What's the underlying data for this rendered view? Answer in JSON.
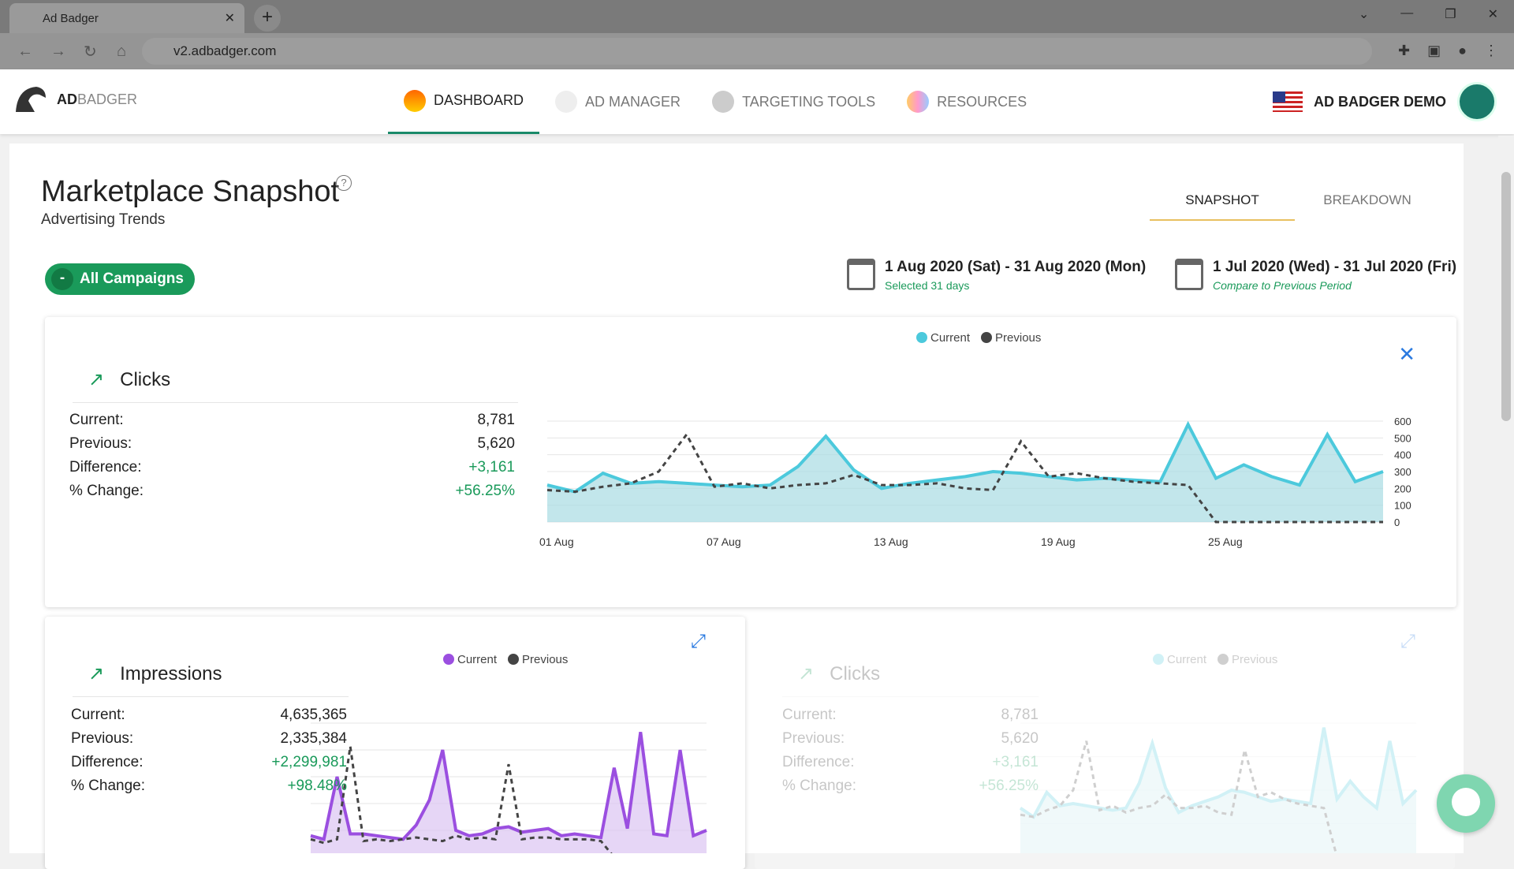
{
  "browser": {
    "tab_title": "Ad Badger",
    "url": "v2.adbadger.com"
  },
  "app": {
    "logo_bold": "AD",
    "logo_light": "BADGER",
    "menu": [
      {
        "label": "DASHBOARD",
        "active": true,
        "icon": "gauge-icon"
      },
      {
        "label": "AD MANAGER",
        "icon": "compass-icon"
      },
      {
        "label": "TARGETING TOOLS",
        "icon": "magnifier-icon"
      },
      {
        "label": "RESOURCES",
        "icon": "binders-icon"
      }
    ],
    "account": "AD BADGER DEMO"
  },
  "page": {
    "title": "Marketplace Snapshot",
    "help": "?",
    "subtitle": "Advertising Trends",
    "tabs": [
      "SNAPSHOT",
      "BREAKDOWN"
    ],
    "campaign_filter": "All Campaigns",
    "date_current": "1 Aug 2020 (Sat) - 31 Aug 2020 (Mon)",
    "date_current_note": "Selected 31 days",
    "date_previous": "1 Jul 2020 (Wed) - 31 Jul 2020 (Fri)",
    "date_previous_note": "Compare to Previous Period"
  },
  "colors": {
    "clicks": "#4cc9dc",
    "impressions": "#9b4fe0",
    "previous": "#444444",
    "positive": "#1a9a5a"
  },
  "cards": [
    {
      "title": "Clicks",
      "stats": [
        [
          "Current:",
          "8,781"
        ],
        [
          "Previous:",
          "5,620"
        ],
        [
          "Difference:",
          "+3,161"
        ],
        [
          "% Change:",
          "+56.25%"
        ]
      ],
      "legend": [
        "Current",
        "Previous"
      ]
    },
    {
      "title": "Impressions",
      "stats": [
        [
          "Current:",
          "4,635,365"
        ],
        [
          "Previous:",
          "2,335,384"
        ],
        [
          "Difference:",
          "+2,299,981"
        ],
        [
          "% Change:",
          "+98.48%"
        ]
      ],
      "legend": [
        "Current",
        "Previous"
      ]
    },
    {
      "title": "Clicks",
      "stats": [
        [
          "Current:",
          "8,781"
        ],
        [
          "Previous:",
          "5,620"
        ],
        [
          "Difference:",
          "+3,161"
        ],
        [
          "% Change:",
          "+56.25%"
        ]
      ],
      "legend": [
        "Current",
        "Previous"
      ]
    }
  ],
  "chart_data": [
    {
      "type": "area",
      "series": [
        {
          "name": "Current",
          "values": [
            220,
            180,
            290,
            230,
            240,
            230,
            220,
            210,
            220,
            330,
            510,
            310,
            200,
            230,
            250,
            270,
            300,
            290,
            270,
            250,
            260,
            250,
            240,
            580,
            260,
            340,
            270,
            220,
            520,
            240,
            300
          ]
        },
        {
          "name": "Previous",
          "values": [
            190,
            180,
            210,
            230,
            300,
            520,
            210,
            230,
            200,
            220,
            230,
            280,
            220,
            220,
            230,
            200,
            190,
            480,
            270,
            290,
            260,
            240,
            230,
            220,
            0,
            0,
            0,
            0,
            0,
            0,
            0
          ]
        }
      ],
      "x_ticks": [
        "01 Aug",
        "07 Aug",
        "13 Aug",
        "19 Aug",
        "25 Aug"
      ],
      "y_ticks": [
        0,
        100,
        200,
        300,
        400,
        500,
        600
      ],
      "ylim": [
        0,
        600
      ],
      "legend": "top",
      "grid": true
    },
    {
      "type": "area",
      "series": [
        {
          "name": "Current",
          "values": [
            120,
            100,
            450,
            130,
            130,
            120,
            110,
            100,
            180,
            320,
            600,
            150,
            120,
            130,
            160,
            170,
            140,
            150,
            160,
            120,
            130,
            120,
            110,
            500,
            160,
            700,
            130,
            120,
            600,
            120,
            150
          ]
        },
        {
          "name": "Previous",
          "values": [
            100,
            80,
            100,
            620,
            90,
            100,
            90,
            100,
            110,
            100,
            90,
            120,
            100,
            110,
            100,
            520,
            100,
            110,
            110,
            100,
            100,
            100,
            90,
            0,
            0,
            0,
            0,
            0,
            0,
            0,
            0
          ]
        }
      ],
      "ylim": [
        0,
        750
      ],
      "legend": "top"
    },
    {
      "type": "area",
      "faded": true,
      "series": [
        {
          "name": "Current",
          "values": [
            220,
            180,
            290,
            230,
            240,
            230,
            220,
            210,
            220,
            330,
            510,
            310,
            200,
            230,
            250,
            270,
            300,
            290,
            270,
            250,
            260,
            250,
            240,
            580,
            260,
            340,
            270,
            220,
            520,
            240,
            300
          ]
        },
        {
          "name": "Previous",
          "values": [
            190,
            180,
            210,
            230,
            300,
            520,
            210,
            230,
            200,
            220,
            230,
            280,
            220,
            220,
            230,
            200,
            190,
            480,
            270,
            290,
            260,
            240,
            230,
            220,
            0,
            0,
            0,
            0,
            0,
            0,
            0
          ]
        }
      ],
      "ylim": [
        0,
        600
      ],
      "legend": "top"
    }
  ]
}
